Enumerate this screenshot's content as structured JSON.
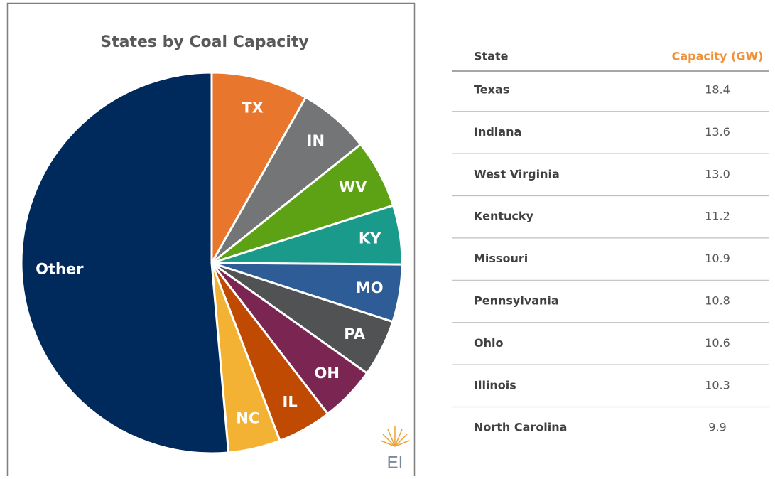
{
  "chart_data": {
    "type": "pie",
    "title": "States by Coal Capacity",
    "categories": [
      "TX",
      "IN",
      "WV",
      "KY",
      "MO",
      "PA",
      "OH",
      "IL",
      "NC",
      "Other"
    ],
    "values": [
      18.4,
      13.6,
      13.0,
      11.2,
      10.9,
      10.8,
      10.6,
      10.3,
      9.9,
      115
    ],
    "colors": [
      "#e8762d",
      "#737577",
      "#5ca214",
      "#1a9a8b",
      "#2e5c96",
      "#505254",
      "#7b2552",
      "#c04a02",
      "#f4b235",
      "#002a5c"
    ]
  },
  "logo": "EI",
  "table": {
    "header": [
      "State",
      "Capacity (GW)"
    ],
    "rows": [
      [
        "Texas",
        "18.4"
      ],
      [
        "Indiana",
        "13.6"
      ],
      [
        "West Virginia",
        "13.0"
      ],
      [
        "Kentucky",
        "11.2"
      ],
      [
        "Missouri",
        "10.9"
      ],
      [
        "Pennsylvania",
        "10.8"
      ],
      [
        "Ohio",
        "10.6"
      ],
      [
        "Illinois",
        "10.3"
      ],
      [
        "North Carolina",
        "9.9"
      ]
    ]
  }
}
